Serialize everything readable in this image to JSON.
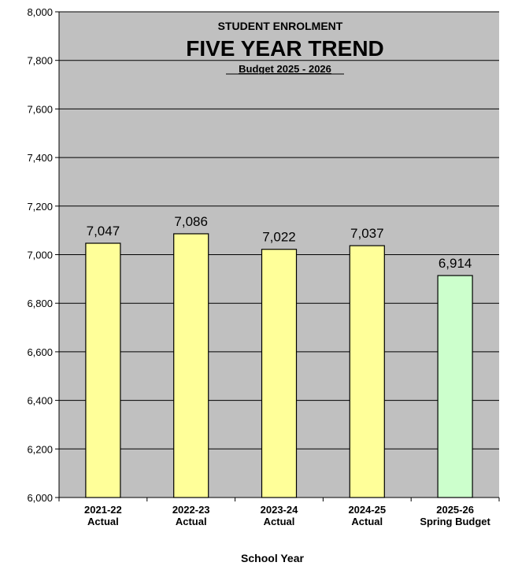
{
  "chart_data": {
    "type": "bar",
    "title": "STUDENT ENROLMENT",
    "title_main": "FIVE YEAR TREND",
    "subtitle": "Budget 2025 - 2026",
    "xlabel": "School Year",
    "ylabel": "",
    "ylim": [
      6000,
      8000
    ],
    "yticks": [
      "6,000",
      "6,200",
      "6,400",
      "6,600",
      "6,800",
      "7,000",
      "7,200",
      "7,400",
      "7,600",
      "7,800",
      "8,000"
    ],
    "ytick_values": [
      6000,
      6200,
      6400,
      6600,
      6800,
      7000,
      7200,
      7400,
      7600,
      7800,
      8000
    ],
    "grid": true,
    "legend": "none",
    "categories": [
      [
        "2021-22",
        "Actual"
      ],
      [
        "2022-23",
        "Actual"
      ],
      [
        "2023-24",
        "Actual"
      ],
      [
        "2024-25",
        "Actual"
      ],
      [
        "2025-26",
        "Spring Budget"
      ]
    ],
    "values": [
      7047,
      7086,
      7022,
      7037,
      6914
    ],
    "value_labels": [
      "7,047",
      "7,086",
      "7,022",
      "7,037",
      "6,914"
    ],
    "bar_colors": [
      "#ffff99",
      "#ffff99",
      "#ffff99",
      "#ffff99",
      "#ccffcc"
    ],
    "plot_background": "#c0c0c0"
  }
}
